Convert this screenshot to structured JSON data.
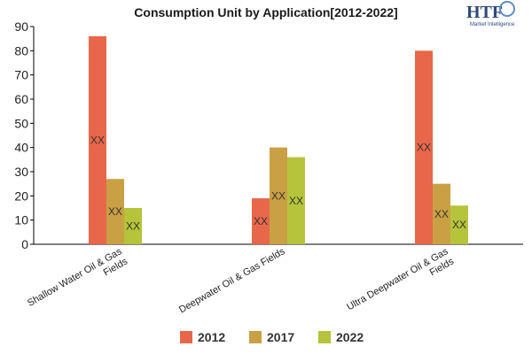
{
  "logo": {
    "mark": "HTF",
    "tagline": "Market Intelligence"
  },
  "chart_data": {
    "type": "bar",
    "title": "Consumption Unit by  Application[2012-2022]",
    "xlabel": "",
    "ylabel": "",
    "categories": [
      [
        "Shallow Water Oil & Gas",
        "Fields"
      ],
      [
        "Deepwater Oil & Gas Fields"
      ],
      [
        "Ultra Deepwater Oil & Gas",
        "Fields"
      ]
    ],
    "series": [
      {
        "name": "2012",
        "color": "#e8674a",
        "values": [
          86,
          19,
          80
        ]
      },
      {
        "name": "2017",
        "color": "#c9a044",
        "values": [
          27,
          40,
          25
        ]
      },
      {
        "name": "2022",
        "color": "#b5c43a",
        "values": [
          15,
          36,
          16
        ]
      }
    ],
    "data_labels": "XX",
    "ylim": [
      0,
      90
    ],
    "yticks": [
      0,
      10,
      20,
      30,
      40,
      50,
      60,
      70,
      80,
      90
    ],
    "grid": false,
    "legend_position": "bottom"
  }
}
